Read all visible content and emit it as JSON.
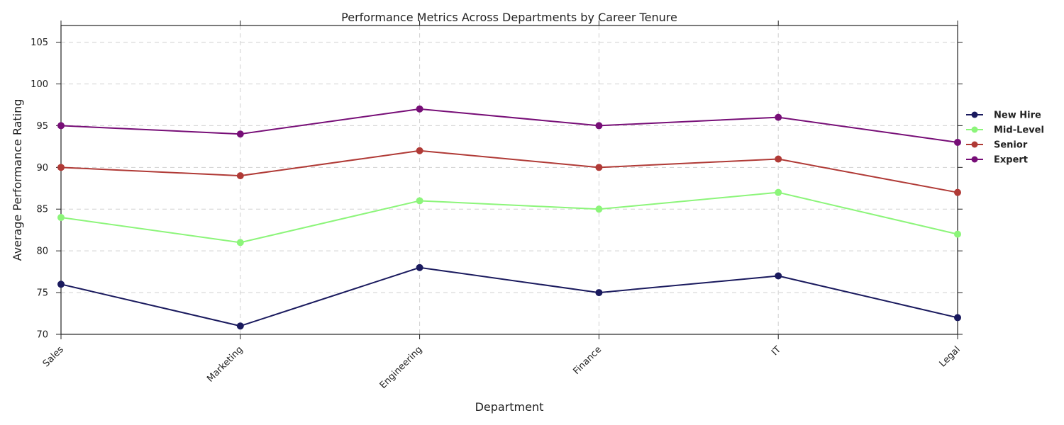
{
  "chart_data": {
    "type": "line",
    "title": "Performance Metrics Across Departments by Career Tenure",
    "xlabel": "Department",
    "ylabel": "Average Performance Rating",
    "categories": [
      "Sales",
      "Marketing",
      "Engineering",
      "Finance",
      "IT",
      "Legal"
    ],
    "ylim": [
      70,
      107
    ],
    "yticks": [
      70,
      75,
      80,
      85,
      90,
      95,
      100,
      105
    ],
    "grid": true,
    "legend_position": "right",
    "series": [
      {
        "name": "New Hire",
        "color": "#1a1a5e",
        "values": [
          76,
          71,
          78,
          75,
          77,
          72
        ]
      },
      {
        "name": "Mid-Level",
        "color": "#8cf57a",
        "values": [
          84,
          81,
          86,
          85,
          87,
          82
        ]
      },
      {
        "name": "Senior",
        "color": "#b03a36",
        "values": [
          90,
          89,
          92,
          90,
          91,
          87
        ]
      },
      {
        "name": "Expert",
        "color": "#770e77",
        "values": [
          95,
          94,
          97,
          95,
          96,
          93
        ]
      }
    ]
  }
}
